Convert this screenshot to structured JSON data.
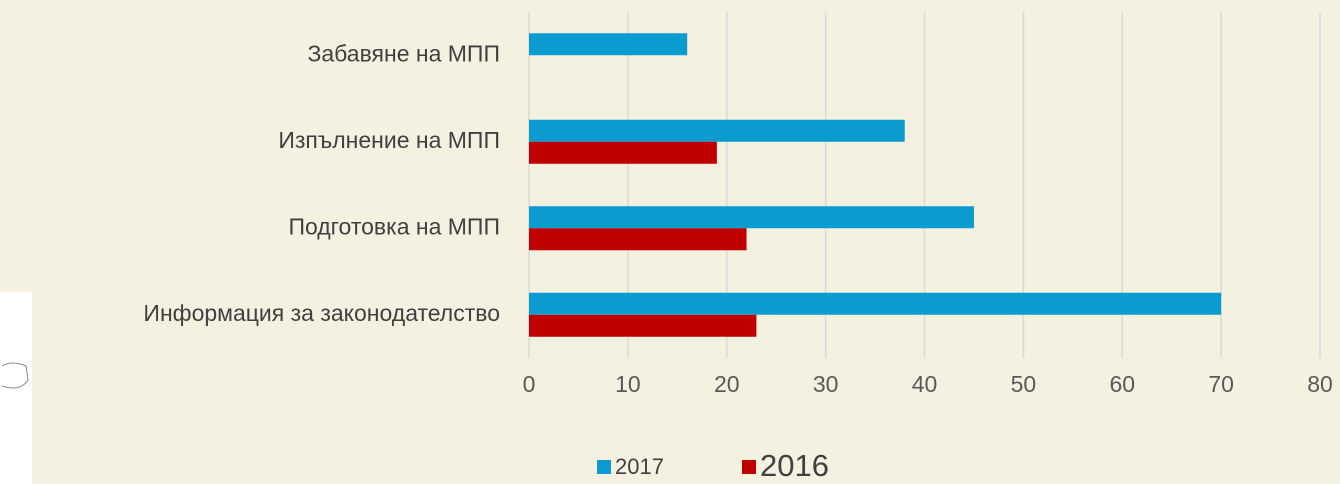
{
  "chart_data": {
    "type": "bar",
    "orientation": "horizontal",
    "categories": [
      "Забавяне на МПП",
      "Изпълнение на МПП",
      "Подготовка на МПП",
      "Информация за законодателство"
    ],
    "series": [
      {
        "name": "2017",
        "color": "#0a9bd0",
        "values": [
          16,
          38,
          45,
          70
        ]
      },
      {
        "name": "2016",
        "color": "#c00000",
        "values": [
          null,
          19,
          22,
          23
        ]
      }
    ],
    "xlim": [
      0,
      80
    ],
    "xticks": [
      0,
      10,
      20,
      30,
      40,
      50,
      60,
      70,
      80
    ],
    "grid": true,
    "legend": "bottom"
  }
}
